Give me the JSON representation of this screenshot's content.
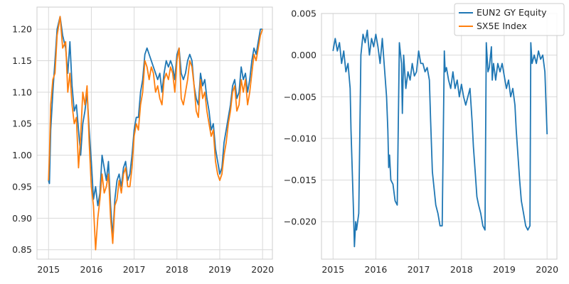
{
  "colors": {
    "blue": "#1f77b4",
    "orange": "#ff7f0e",
    "grid": "#d9d9d9",
    "frame": "#cccccc"
  },
  "legend": {
    "placement": "top-right",
    "items": [
      "EUN2 GY Equity",
      "SX5E Index"
    ]
  },
  "chart_data": [
    {
      "type": "line",
      "title": "",
      "xlabel": "",
      "ylabel": "",
      "xlim": [
        2014.73,
        2020.23
      ],
      "ylim": [
        0.835,
        1.235
      ],
      "grid": true,
      "xticks": [
        2015,
        2016,
        2017,
        2018,
        2019,
        2020
      ],
      "xtick_labels": [
        "2015",
        "2016",
        "2017",
        "2018",
        "2019",
        "2020"
      ],
      "yticks": [
        0.85,
        0.9,
        0.95,
        1.0,
        1.05,
        1.1,
        1.15,
        1.2
      ],
      "ytick_labels": [
        "0.85",
        "0.90",
        "0.95",
        "1.00",
        "1.05",
        "1.10",
        "1.15",
        "1.20"
      ],
      "series": [
        {
          "name": "EUN2 GY Equity",
          "color": "#1f77b4",
          "x": [
            2015.0,
            2015.02,
            2015.05,
            2015.1,
            2015.15,
            2015.2,
            2015.27,
            2015.33,
            2015.4,
            2015.45,
            2015.5,
            2015.55,
            2015.6,
            2015.65,
            2015.7,
            2015.75,
            2015.8,
            2015.85,
            2015.9,
            2015.95,
            2016.0,
            2016.05,
            2016.1,
            2016.15,
            2016.2,
            2016.25,
            2016.3,
            2016.35,
            2016.4,
            2016.45,
            2016.5,
            2016.55,
            2016.6,
            2016.65,
            2016.7,
            2016.75,
            2016.8,
            2016.85,
            2016.9,
            2016.95,
            2017.0,
            2017.05,
            2017.1,
            2017.15,
            2017.2,
            2017.25,
            2017.3,
            2017.35,
            2017.4,
            2017.45,
            2017.5,
            2017.55,
            2017.6,
            2017.65,
            2017.7,
            2017.75,
            2017.8,
            2017.85,
            2017.9,
            2017.95,
            2018.0,
            2018.05,
            2018.1,
            2018.15,
            2018.2,
            2018.25,
            2018.3,
            2018.35,
            2018.4,
            2018.45,
            2018.5,
            2018.55,
            2018.6,
            2018.65,
            2018.7,
            2018.75,
            2018.8,
            2018.85,
            2018.9,
            2018.95,
            2019.0,
            2019.05,
            2019.1,
            2019.15,
            2019.2,
            2019.25,
            2019.3,
            2019.35,
            2019.4,
            2019.45,
            2019.5,
            2019.55,
            2019.6,
            2019.65,
            2019.7,
            2019.75,
            2019.8,
            2019.85,
            2019.9,
            2019.95,
            2020.0
          ],
          "y": [
            0.96,
            0.955,
            1.04,
            1.1,
            1.15,
            1.2,
            1.22,
            1.19,
            1.17,
            1.13,
            1.18,
            1.11,
            1.07,
            1.08,
            1.04,
            1.0,
            1.05,
            1.07,
            1.1,
            1.04,
            0.99,
            0.93,
            0.95,
            0.92,
            0.94,
            1.0,
            0.98,
            0.96,
            0.99,
            0.92,
            0.87,
            0.93,
            0.96,
            0.97,
            0.95,
            0.98,
            0.99,
            0.96,
            0.97,
            1.0,
            1.04,
            1.06,
            1.06,
            1.1,
            1.12,
            1.16,
            1.17,
            1.16,
            1.15,
            1.14,
            1.13,
            1.12,
            1.13,
            1.1,
            1.13,
            1.15,
            1.14,
            1.15,
            1.14,
            1.12,
            1.16,
            1.17,
            1.13,
            1.12,
            1.13,
            1.15,
            1.16,
            1.15,
            1.11,
            1.09,
            1.08,
            1.13,
            1.11,
            1.12,
            1.09,
            1.07,
            1.04,
            1.05,
            1.01,
            0.99,
            0.97,
            0.98,
            1.02,
            1.04,
            1.06,
            1.08,
            1.11,
            1.12,
            1.09,
            1.1,
            1.14,
            1.12,
            1.13,
            1.1,
            1.12,
            1.15,
            1.17,
            1.16,
            1.18,
            1.2,
            1.2
          ]
        },
        {
          "name": "SX5E Index",
          "color": "#ff7f0e",
          "x": [
            2015.0,
            2015.02,
            2015.05,
            2015.1,
            2015.15,
            2015.2,
            2015.27,
            2015.33,
            2015.4,
            2015.45,
            2015.5,
            2015.55,
            2015.6,
            2015.65,
            2015.7,
            2015.75,
            2015.8,
            2015.85,
            2015.9,
            2015.95,
            2016.0,
            2016.05,
            2016.1,
            2016.15,
            2016.2,
            2016.25,
            2016.3,
            2016.35,
            2016.4,
            2016.45,
            2016.5,
            2016.55,
            2016.6,
            2016.65,
            2016.7,
            2016.75,
            2016.8,
            2016.85,
            2016.9,
            2016.95,
            2017.0,
            2017.05,
            2017.1,
            2017.15,
            2017.2,
            2017.25,
            2017.3,
            2017.35,
            2017.4,
            2017.45,
            2017.5,
            2017.55,
            2017.6,
            2017.65,
            2017.7,
            2017.75,
            2017.8,
            2017.85,
            2017.9,
            2017.95,
            2018.0,
            2018.05,
            2018.1,
            2018.15,
            2018.2,
            2018.25,
            2018.3,
            2018.35,
            2018.4,
            2018.45,
            2018.5,
            2018.55,
            2018.6,
            2018.65,
            2018.7,
            2018.75,
            2018.8,
            2018.85,
            2018.9,
            2018.95,
            2019.0,
            2019.05,
            2019.1,
            2019.15,
            2019.2,
            2019.25,
            2019.3,
            2019.35,
            2019.4,
            2019.45,
            2019.5,
            2019.55,
            2019.6,
            2019.65,
            2019.7,
            2019.75,
            2019.8,
            2019.85,
            2019.9,
            2019.95,
            2020.0
          ],
          "y": [
            0.96,
            1.0,
            1.08,
            1.12,
            1.13,
            1.19,
            1.22,
            1.17,
            1.18,
            1.1,
            1.13,
            1.08,
            1.05,
            1.06,
            0.98,
            1.03,
            1.1,
            1.08,
            1.11,
            1.02,
            0.95,
            0.92,
            0.85,
            0.9,
            0.93,
            0.97,
            0.94,
            0.95,
            0.97,
            0.9,
            0.86,
            0.92,
            0.93,
            0.96,
            0.94,
            0.97,
            0.98,
            0.95,
            0.95,
            0.98,
            1.03,
            1.05,
            1.04,
            1.08,
            1.1,
            1.15,
            1.14,
            1.12,
            1.14,
            1.13,
            1.1,
            1.11,
            1.09,
            1.08,
            1.12,
            1.13,
            1.12,
            1.14,
            1.13,
            1.1,
            1.15,
            1.17,
            1.09,
            1.08,
            1.1,
            1.12,
            1.15,
            1.14,
            1.11,
            1.07,
            1.06,
            1.12,
            1.09,
            1.1,
            1.07,
            1.05,
            1.03,
            1.04,
            0.99,
            0.97,
            0.96,
            0.97,
            1.0,
            1.02,
            1.05,
            1.07,
            1.1,
            1.11,
            1.07,
            1.08,
            1.12,
            1.1,
            1.12,
            1.08,
            1.1,
            1.13,
            1.16,
            1.15,
            1.17,
            1.19,
            1.2
          ]
        }
      ]
    },
    {
      "type": "line",
      "title": "",
      "xlabel": "",
      "ylabel": "",
      "xlim": [
        2014.73,
        2020.23
      ],
      "ylim": [
        -0.0245,
        0.005
      ],
      "grid": true,
      "xticks": [
        2015,
        2016,
        2017,
        2018,
        2019,
        2020
      ],
      "xtick_labels": [
        "2015",
        "2016",
        "2017",
        "2018",
        "2019",
        "2020"
      ],
      "yticks": [
        -0.02,
        -0.015,
        -0.01,
        -0.005,
        0.0,
        0.005
      ],
      "ytick_labels": [
        "−0.020",
        "−0.015",
        "−0.010",
        "−0.005",
        "0.000",
        "0.005"
      ],
      "series": [
        {
          "name": "EUN2 GY Equity",
          "color": "#1f77b4",
          "x": [
            2015.0,
            2015.05,
            2015.1,
            2015.15,
            2015.2,
            2015.25,
            2015.3,
            2015.35,
            2015.4,
            2015.42,
            2015.45,
            2015.48,
            2015.5,
            2015.53,
            2015.55,
            2015.6,
            2015.65,
            2015.7,
            2015.75,
            2015.8,
            2015.85,
            2015.9,
            2015.95,
            2016.0,
            2016.05,
            2016.1,
            2016.15,
            2016.2,
            2016.25,
            2016.28,
            2016.3,
            2016.32,
            2016.35,
            2016.4,
            2016.45,
            2016.5,
            2016.55,
            2016.6,
            2016.62,
            2016.65,
            2016.7,
            2016.75,
            2016.8,
            2016.85,
            2016.9,
            2016.95,
            2017.0,
            2017.05,
            2017.1,
            2017.15,
            2017.2,
            2017.25,
            2017.28,
            2017.32,
            2017.36,
            2017.4,
            2017.45,
            2017.5,
            2017.55,
            2017.6,
            2017.62,
            2017.65,
            2017.7,
            2017.75,
            2017.8,
            2017.85,
            2017.9,
            2017.95,
            2018.0,
            2018.05,
            2018.1,
            2018.15,
            2018.2,
            2018.25,
            2018.28,
            2018.32,
            2018.36,
            2018.4,
            2018.45,
            2018.5,
            2018.55,
            2018.58,
            2018.62,
            2018.65,
            2018.7,
            2018.72,
            2018.75,
            2018.8,
            2018.85,
            2018.9,
            2018.95,
            2019.0,
            2019.05,
            2019.1,
            2019.15,
            2019.2,
            2019.25,
            2019.28,
            2019.32,
            2019.36,
            2019.4,
            2019.45,
            2019.5,
            2019.55,
            2019.6,
            2019.62,
            2019.65,
            2019.7,
            2019.75,
            2019.8,
            2019.85,
            2019.9,
            2019.95,
            2020.0
          ],
          "y": [
            0.0005,
            0.002,
            0.0005,
            0.0015,
            -0.001,
            0.0005,
            -0.002,
            -0.001,
            -0.004,
            -0.009,
            -0.014,
            -0.019,
            -0.023,
            -0.02,
            -0.021,
            -0.019,
            0.0,
            0.0025,
            0.0015,
            0.003,
            0.0,
            0.002,
            0.001,
            0.0025,
            0.001,
            -0.001,
            0.002,
            -0.0015,
            -0.005,
            -0.009,
            -0.0135,
            -0.012,
            -0.015,
            -0.0155,
            -0.0175,
            -0.018,
            0.0015,
            -0.001,
            -0.007,
            0.0,
            -0.004,
            -0.002,
            -0.003,
            -0.001,
            -0.0025,
            -0.002,
            0.0005,
            -0.001,
            -0.001,
            -0.002,
            -0.0015,
            -0.003,
            -0.008,
            -0.014,
            -0.016,
            -0.018,
            -0.019,
            -0.0205,
            -0.0205,
            0.0005,
            -0.002,
            -0.0015,
            -0.003,
            -0.004,
            -0.002,
            -0.004,
            -0.003,
            -0.005,
            -0.0035,
            -0.005,
            -0.006,
            -0.005,
            -0.004,
            -0.008,
            -0.011,
            -0.014,
            -0.017,
            -0.018,
            -0.019,
            -0.0205,
            -0.021,
            0.0015,
            -0.002,
            -0.0015,
            0.001,
            -0.003,
            -0.001,
            -0.003,
            -0.001,
            -0.002,
            -0.001,
            -0.0025,
            -0.004,
            -0.003,
            -0.005,
            -0.004,
            -0.006,
            -0.009,
            -0.012,
            -0.015,
            -0.0175,
            -0.019,
            -0.0205,
            -0.021,
            -0.0205,
            0.0015,
            -0.001,
            0.0,
            -0.001,
            0.0005,
            -0.0005,
            0.0,
            -0.002,
            -0.0095
          ]
        }
      ]
    }
  ]
}
